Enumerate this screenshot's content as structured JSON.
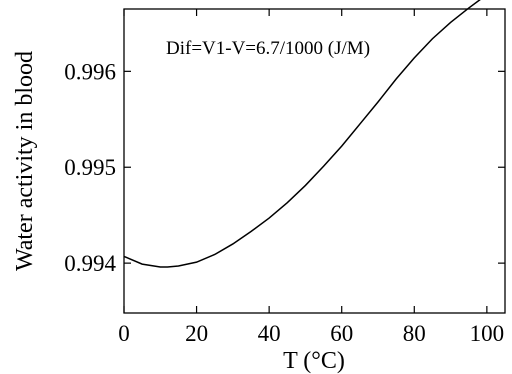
{
  "chart_data": {
    "type": "line",
    "title": "",
    "xlabel": "T (°C)",
    "ylabel": "Water activity in blood",
    "xlim": [
      0,
      105
    ],
    "ylim": [
      0.99348,
      0.99665
    ],
    "xticks": [
      0,
      20,
      40,
      60,
      80,
      100
    ],
    "xtick_labels": [
      "0",
      "20",
      "40",
      "60",
      "80",
      "100"
    ],
    "yticks": [
      0.994,
      0.995,
      0.996
    ],
    "ytick_labels": [
      "0.994",
      "0.995",
      "0.996"
    ],
    "grid": false,
    "legend": "none",
    "annotation": "Dif=V1-V=6.7/1000 (J/M)",
    "series": [
      {
        "x": [
          0,
          5,
          10,
          12,
          15,
          20,
          25,
          30,
          35,
          40,
          45,
          50,
          55,
          60,
          65,
          70,
          75,
          80,
          85,
          90,
          95,
          100,
          105
        ],
        "y": [
          0.99407,
          0.99399,
          0.99396,
          0.99396,
          0.99397,
          0.99401,
          0.99409,
          0.9942,
          0.99433,
          0.99447,
          0.99463,
          0.99481,
          0.99501,
          0.99522,
          0.99545,
          0.99568,
          0.99592,
          0.99614,
          0.99634,
          0.99651,
          0.99666,
          0.9968,
          0.99692
        ]
      }
    ]
  }
}
